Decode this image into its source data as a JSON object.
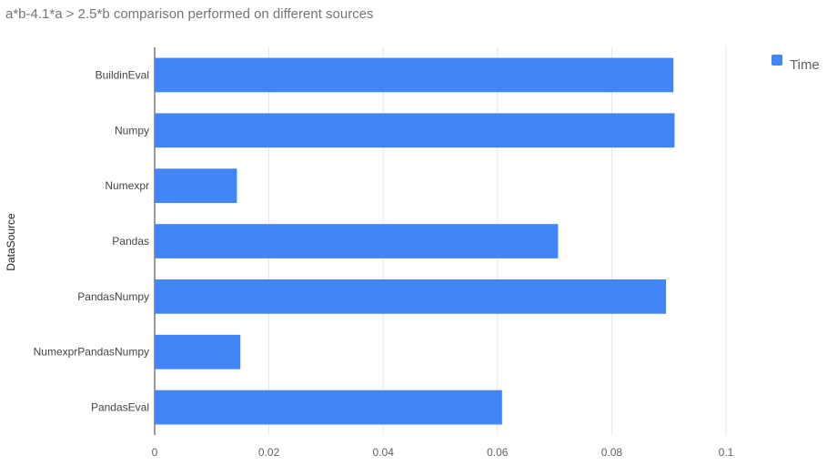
{
  "chart_data": {
    "type": "bar",
    "orientation": "horizontal",
    "title": "a*b-4.1*a > 2.5*b comparison performed on different sources",
    "ylabel": "DataSource",
    "xlabel": "",
    "categories": [
      "BuildinEval",
      "Numpy",
      "Numexpr",
      "Pandas",
      "PandasNumpy",
      "NumexprPandasNumpy",
      "PandasEval"
    ],
    "series": [
      {
        "name": "Time",
        "color": "#4285f4",
        "values": [
          0.0908,
          0.091,
          0.0144,
          0.0706,
          0.0895,
          0.015,
          0.0608
        ]
      }
    ],
    "xlim": [
      0,
      0.1
    ],
    "xticks": [
      "0",
      "0.02",
      "0.04",
      "0.06",
      "0.08",
      "0.1"
    ],
    "grid": true,
    "legend_position": "top-right"
  }
}
